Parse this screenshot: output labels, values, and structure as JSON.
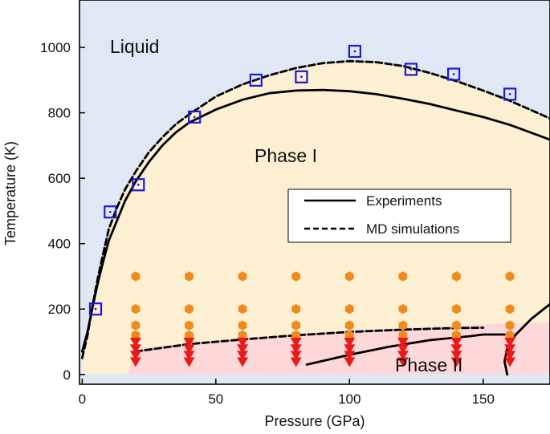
{
  "chart_data": {
    "type": "scatter",
    "xlabel": "Pressure (GPa)",
    "ylabel": "Temperature (K)",
    "xlim": [
      -1,
      175
    ],
    "ylim": [
      -30,
      1145
    ],
    "x_ticks": [
      0,
      50,
      100,
      150
    ],
    "y_ticks": [
      0,
      200,
      400,
      600,
      800,
      1000
    ],
    "region_labels": [
      "Liquid",
      "Phase I",
      "Phase II"
    ],
    "colors": {
      "liquid_region": "#dfe8f4",
      "phase1_region": "#fcefd2",
      "phase2_region": "#fdd8d8",
      "squares": "#1a1ad6",
      "hexagons": "#f08a1e",
      "triangles": "#e81a1a",
      "lines": "#000000"
    },
    "legend": {
      "position": "right-center",
      "entries": [
        {
          "label": "Experiments",
          "style": "solid"
        },
        {
          "label": "MD simulations",
          "style": "dashed"
        }
      ]
    },
    "md_melting_points": [
      {
        "x": 5,
        "y": 200
      },
      {
        "x": 10.5,
        "y": 497
      },
      {
        "x": 21,
        "y": 580
      },
      {
        "x": 42,
        "y": 787
      },
      {
        "x": 65,
        "y": 900
      },
      {
        "x": 82,
        "y": 910
      },
      {
        "x": 102,
        "y": 988
      },
      {
        "x": 123,
        "y": 933
      },
      {
        "x": 139,
        "y": 918
      },
      {
        "x": 160,
        "y": 857
      }
    ],
    "phase_I_points": {
      "pressures": [
        20,
        40,
        60,
        80,
        100,
        120,
        140,
        160
      ],
      "temperatures": [
        300,
        200,
        150,
        120
      ]
    },
    "phase_II_points": {
      "pressures": [
        20,
        40,
        60,
        80,
        100,
        120,
        140,
        160
      ],
      "temperatures": [
        100,
        80,
        60,
        40
      ]
    },
    "series": [
      {
        "name": "Experiments",
        "style": "solid",
        "x": [
          0,
          2,
          4,
          6,
          8,
          10,
          13,
          16,
          20,
          25,
          30,
          35,
          40,
          50,
          60,
          70,
          80,
          90,
          100,
          110,
          120,
          130,
          140,
          150,
          160,
          175
        ],
        "y": [
          70,
          130,
          210,
          285,
          350,
          410,
          470,
          530,
          590,
          650,
          700,
          740,
          770,
          810,
          840,
          860,
          868,
          870,
          866,
          857,
          843,
          827,
          807,
          787,
          763,
          718
        ]
      },
      {
        "name": "MD simulations",
        "style": "dashed",
        "x": [
          0,
          2,
          4,
          6,
          8,
          10,
          13,
          16,
          20,
          25,
          30,
          35,
          40,
          50,
          60,
          70,
          80,
          90,
          100,
          110,
          120,
          130,
          140,
          150,
          160,
          175
        ],
        "y": [
          50,
          120,
          215,
          300,
          375,
          445,
          510,
          565,
          620,
          680,
          725,
          765,
          795,
          850,
          887,
          915,
          937,
          952,
          958,
          955,
          943,
          922,
          897,
          868,
          837,
          783
        ]
      },
      {
        "name": "MD I-II boundary",
        "style": "dashed",
        "x": [
          20,
          40,
          60,
          80,
          100,
          120,
          140,
          150
        ],
        "y": [
          70,
          93,
          107,
          120,
          130,
          137,
          142,
          143
        ]
      },
      {
        "name": "Experimental I-II boundary",
        "style": "solid",
        "x": [
          84,
          100,
          115,
          130,
          145,
          150,
          158
        ],
        "y": [
          30,
          60,
          85,
          105,
          117,
          122,
          122
        ]
      },
      {
        "name": "Experimental II boundary (right)",
        "style": "solid",
        "x": [
          159,
          158,
          159,
          162,
          168,
          175
        ],
        "y": [
          0,
          40,
          80,
          120,
          170,
          215
        ]
      }
    ]
  }
}
